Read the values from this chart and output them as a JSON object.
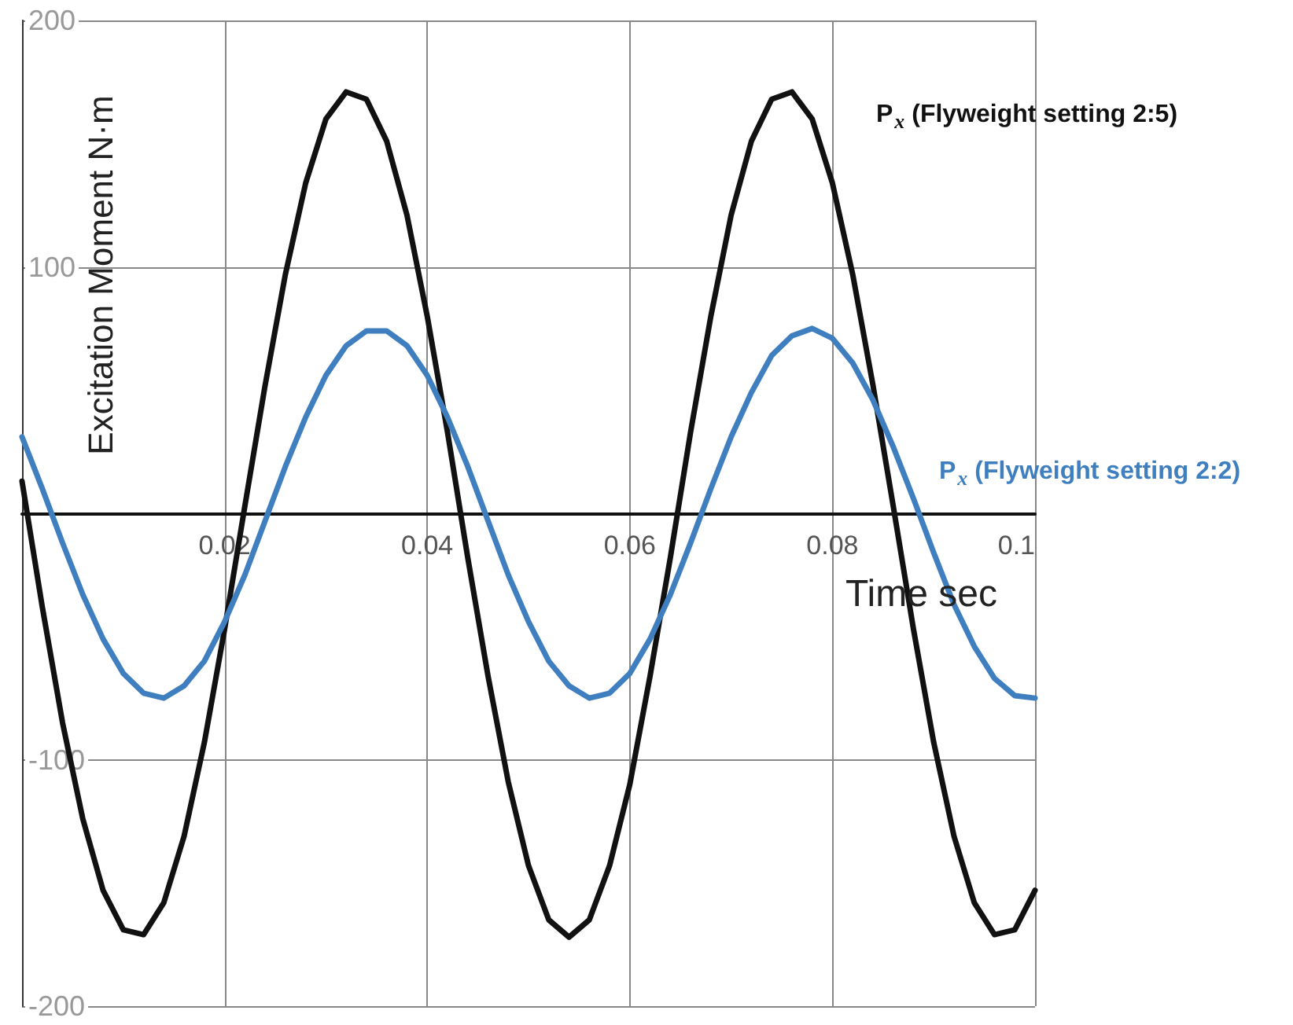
{
  "chart_data": {
    "type": "line",
    "xlabel": "Time sec",
    "ylabel": "Excitation Moment N·m",
    "x": [
      0,
      0.002,
      0.004,
      0.006,
      0.008,
      0.01,
      0.012,
      0.014,
      0.016,
      0.018,
      0.02,
      0.022,
      0.024,
      0.026,
      0.028,
      0.03,
      0.032,
      0.034,
      0.036,
      0.038,
      0.04,
      0.042,
      0.044,
      0.046,
      0.048,
      0.05,
      0.052,
      0.054,
      0.056,
      0.058,
      0.06,
      0.062,
      0.064,
      0.066,
      0.068,
      0.07,
      0.072,
      0.074,
      0.076,
      0.078,
      0.08,
      0.082,
      0.084,
      0.086,
      0.088,
      0.09,
      0.092,
      0.094,
      0.096,
      0.098,
      0.1
    ],
    "series": [
      {
        "name": "P$_{x}$ (Flyweight setting 2:5)",
        "color": "#111111",
        "values": [
          13,
          -38,
          -85,
          -124,
          -153,
          -169,
          -171,
          -158,
          -131,
          -93,
          -47,
          3,
          52,
          97,
          134,
          160,
          171,
          168,
          151,
          121,
          80,
          33,
          -18,
          -66,
          -109,
          -143,
          -165,
          -172,
          -165,
          -143,
          -110,
          -66,
          -18,
          33,
          80,
          121,
          151,
          168,
          171,
          160,
          134,
          97,
          52,
          3,
          -47,
          -93,
          -131,
          -158,
          -171,
          -169,
          -153
        ]
      },
      {
        "name": "P$_{x}$ (Flyweight setting 2:2)",
        "color": "#3f7fbf",
        "values": [
          31,
          10,
          -12,
          -33,
          -51,
          -65,
          -73,
          -75,
          -70,
          -60,
          -44,
          -25,
          -3,
          19,
          39,
          56,
          68,
          74,
          74,
          68,
          56,
          39,
          19,
          -3,
          -25,
          -44,
          -60,
          -70,
          -75,
          -73,
          -65,
          -51,
          -33,
          -12,
          10,
          31,
          49,
          64,
          72,
          75,
          71,
          61,
          46,
          27,
          6,
          -16,
          -37,
          -54,
          -67,
          -74,
          -75
        ]
      }
    ],
    "xlim": [
      0,
      0.1
    ],
    "xticks": [
      0.02,
      0.04,
      0.06,
      0.08,
      0.1
    ],
    "ylim": [
      -200,
      200
    ],
    "yticks": [
      -200,
      -100,
      {
        "value": 0,
        "label": null
      },
      100,
      200
    ],
    "grid": true,
    "legend": false,
    "marker": "none",
    "line_style": "solid"
  }
}
